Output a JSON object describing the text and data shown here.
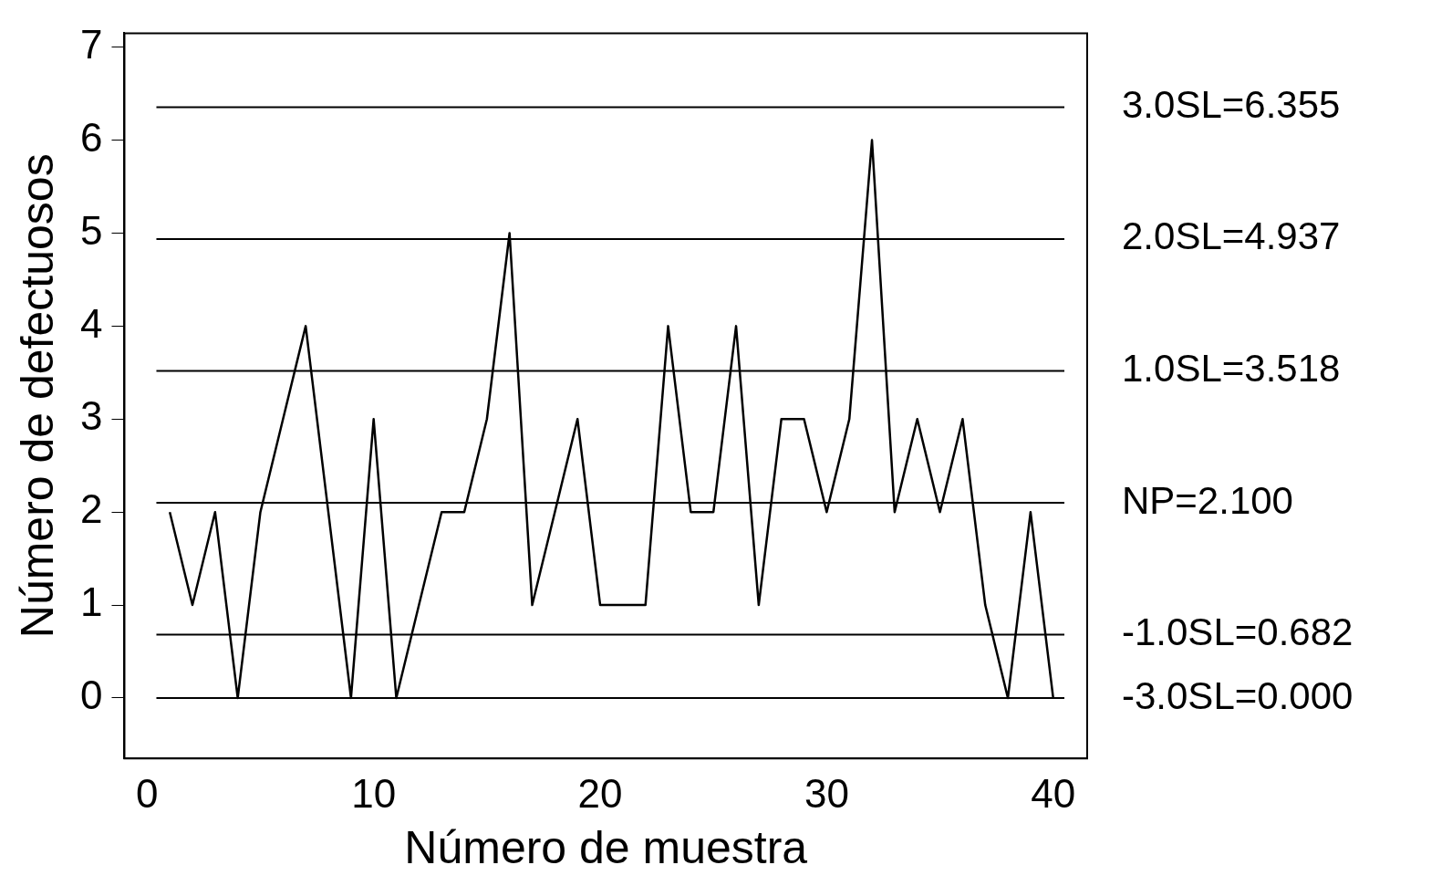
{
  "chart_data": {
    "type": "line",
    "xlabel": "Número de muestra",
    "ylabel": "Número de defectuosos",
    "x": [
      1,
      2,
      3,
      4,
      5,
      6,
      7,
      8,
      9,
      10,
      11,
      12,
      13,
      14,
      15,
      16,
      17,
      18,
      19,
      20,
      21,
      22,
      23,
      24,
      25,
      26,
      27,
      28,
      29,
      30,
      31,
      32,
      33,
      34,
      35,
      36,
      37,
      38,
      39,
      40
    ],
    "series": [
      {
        "color": "#000000",
        "values": [
          2,
          1,
          2,
          0,
          2,
          3,
          4,
          2,
          0,
          3,
          0,
          1,
          2,
          2,
          3,
          5,
          1,
          2,
          3,
          1,
          1,
          1,
          4,
          2,
          2,
          4,
          1,
          3,
          3,
          2,
          3,
          6,
          2,
          3,
          2,
          3,
          1,
          0,
          2,
          0
        ]
      }
    ],
    "xlim": [
      -1,
      41.5
    ],
    "xticks": [
      0,
      10,
      20,
      30,
      40
    ],
    "ylim": [
      -0.65,
      7.15
    ],
    "yticks": [
      0,
      1,
      2,
      3,
      4,
      5,
      6,
      7
    ],
    "ref_lines": [
      {
        "axis": "y",
        "value": 6.355,
        "label": "3.0SL=6.355",
        "color": "#000000"
      },
      {
        "axis": "y",
        "value": 4.937,
        "label": "2.0SL=4.937",
        "color": "#000000"
      },
      {
        "axis": "y",
        "value": 3.518,
        "label": "1.0SL=3.518",
        "color": "#000000"
      },
      {
        "axis": "y",
        "value": 2.1,
        "label": "NP=2.100",
        "color": "#000000"
      },
      {
        "axis": "y",
        "value": 0.682,
        "label": "-1.0SL=0.682",
        "color": "#000000"
      },
      {
        "axis": "y",
        "value": 0.0,
        "label": "-3.0SL=0.000",
        "color": "#000000"
      }
    ],
    "grid": false,
    "legend": false,
    "marker": "none",
    "line_style": "solid"
  }
}
